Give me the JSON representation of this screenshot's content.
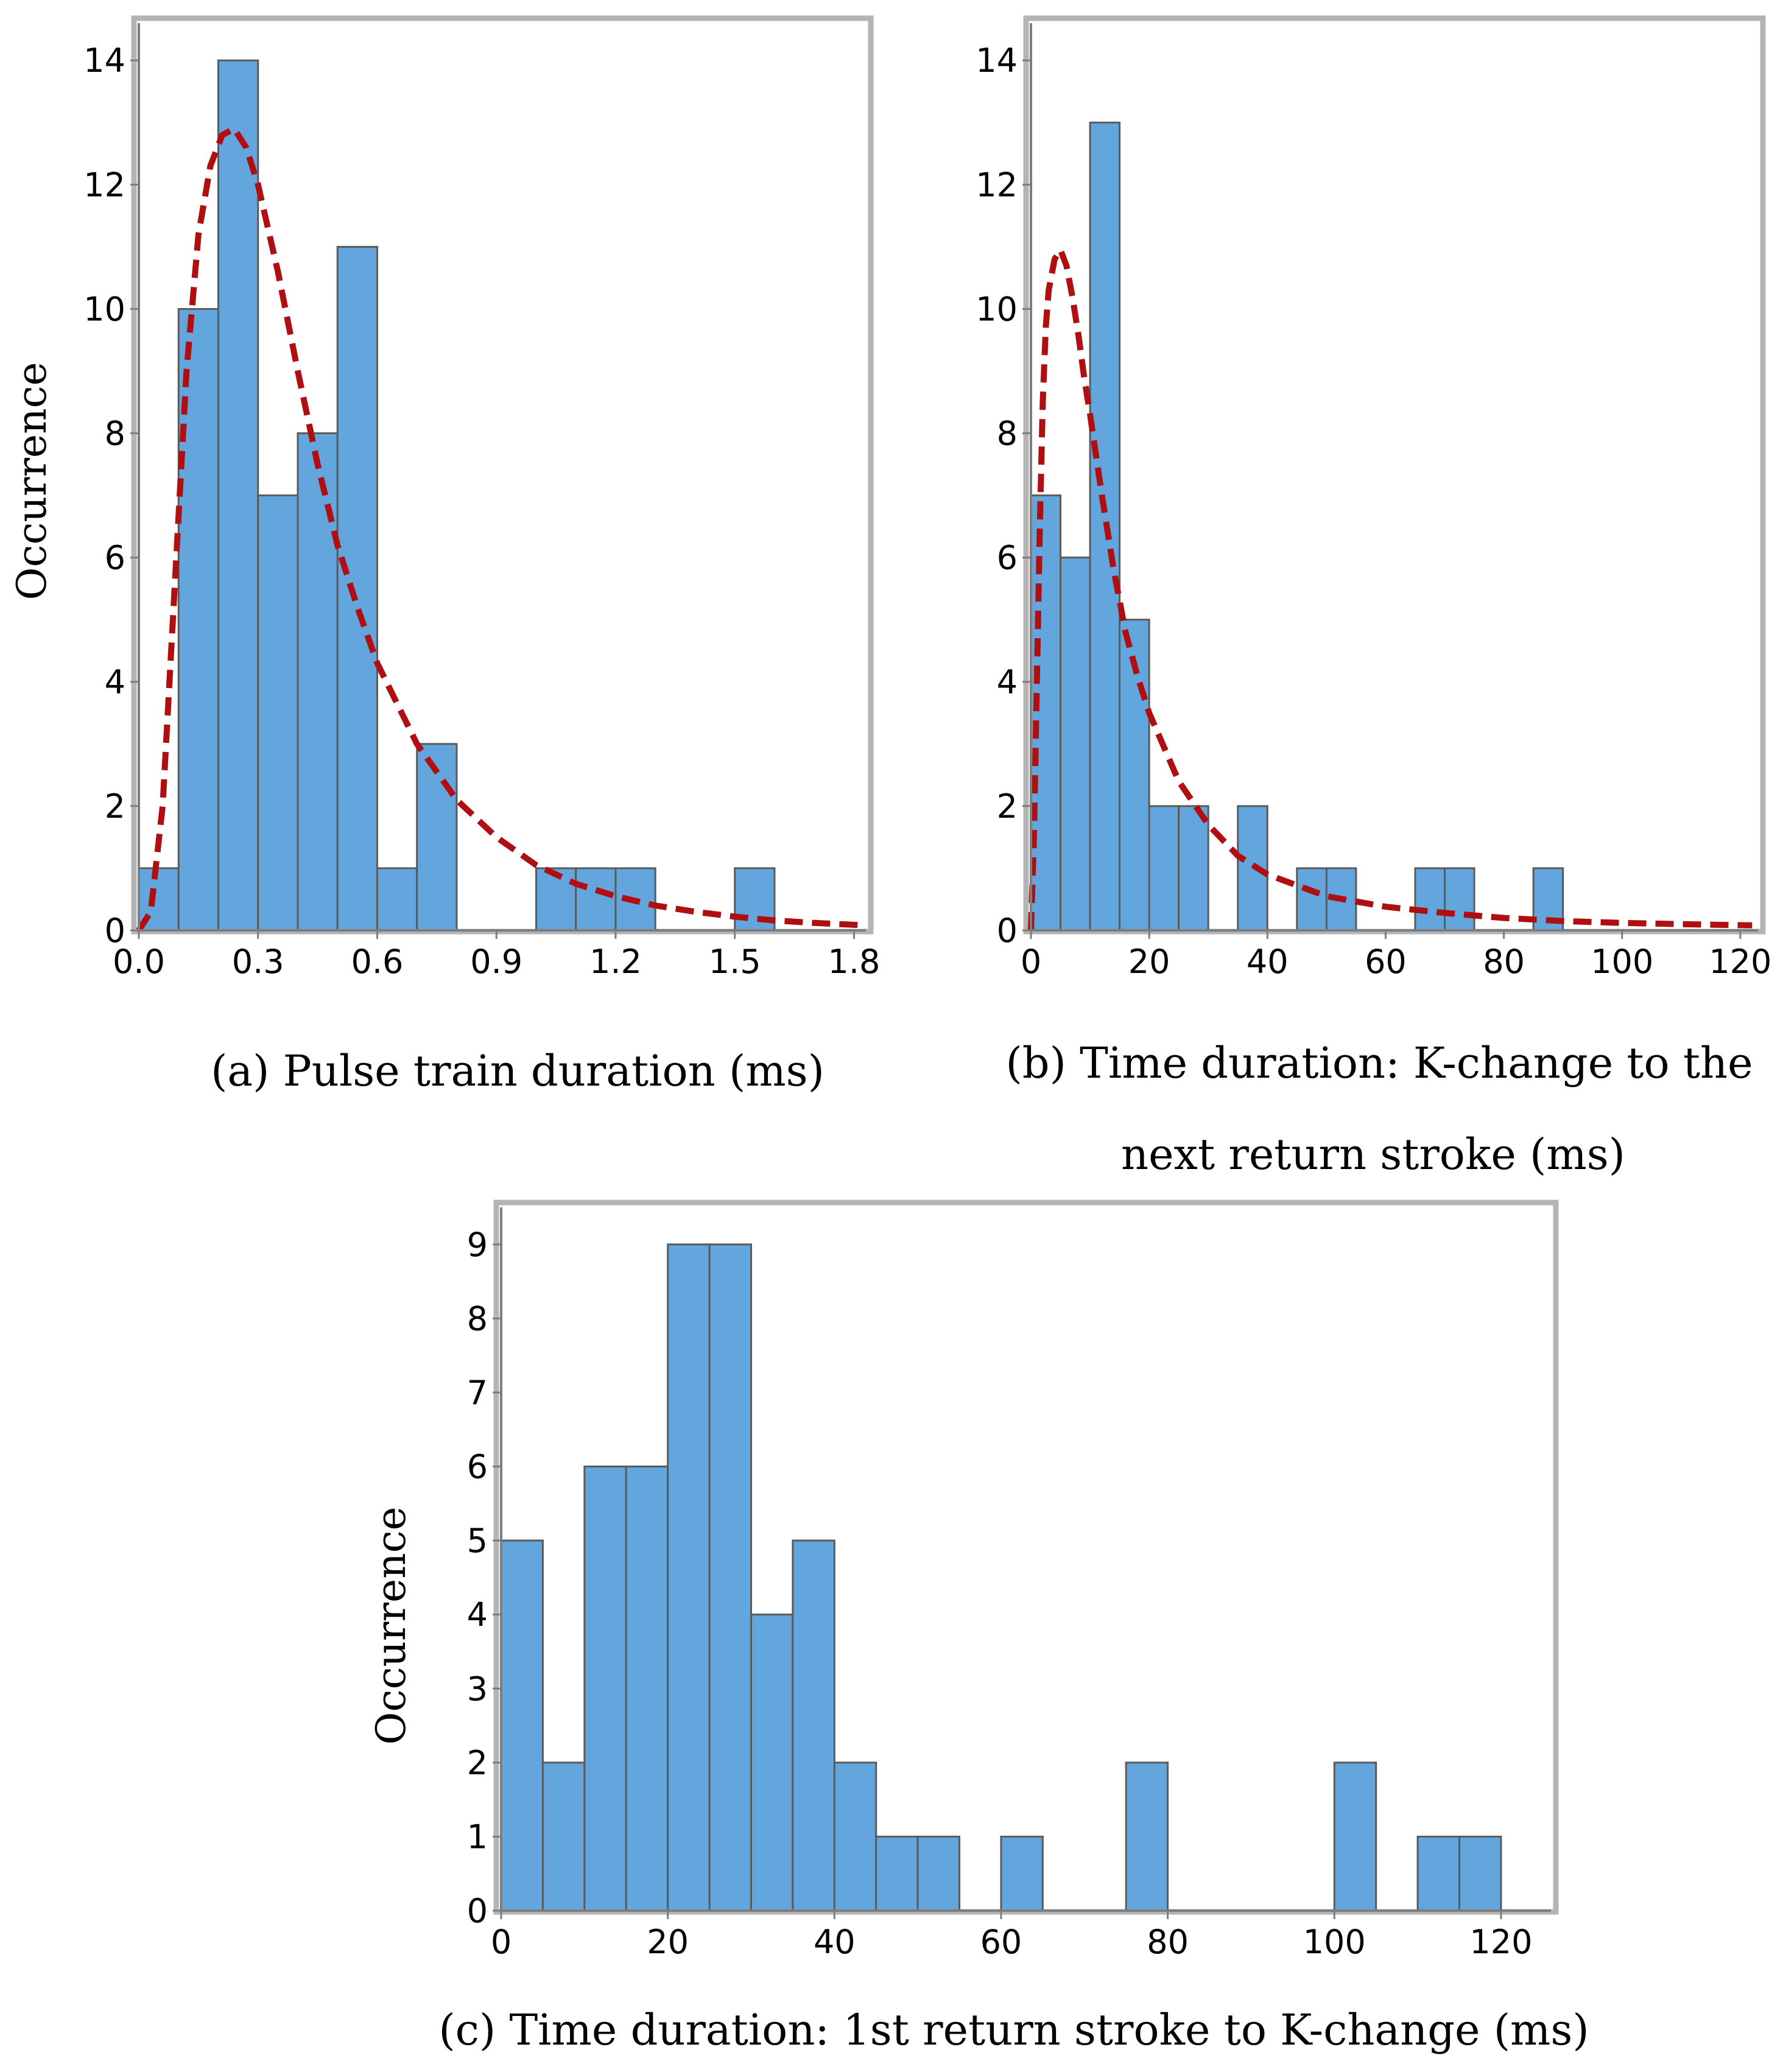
{
  "colors": {
    "bar_fill": "#63a6dd",
    "bar_edge": "#5a5a5a",
    "fit_line": "#b00f12",
    "frame": "#b4b4b4"
  },
  "chart_data": [
    {
      "id": "a",
      "type": "bar",
      "caption": "(a) Pulse train duration (ms)",
      "ylabel": "Occurrence",
      "xlim": [
        0,
        1.83
      ],
      "ylim": [
        0,
        14.6
      ],
      "xticks": [
        0.0,
        0.3,
        0.6,
        0.9,
        1.2,
        1.5,
        1.8
      ],
      "xtick_labels": [
        "0.0",
        "0.3",
        "0.6",
        "0.9",
        "1.2",
        "1.5",
        "1.8"
      ],
      "yticks": [
        0,
        2,
        4,
        6,
        8,
        10,
        12,
        14
      ],
      "ytick_labels": [
        "0",
        "2",
        "4",
        "6",
        "8",
        "10",
        "12",
        "14"
      ],
      "bin_width": 0.1,
      "bins": [
        {
          "start": 0.0,
          "count": 1
        },
        {
          "start": 0.1,
          "count": 10
        },
        {
          "start": 0.2,
          "count": 14
        },
        {
          "start": 0.3,
          "count": 7
        },
        {
          "start": 0.4,
          "count": 8
        },
        {
          "start": 0.5,
          "count": 11
        },
        {
          "start": 0.6,
          "count": 1
        },
        {
          "start": 0.7,
          "count": 3
        },
        {
          "start": 0.8,
          "count": 0
        },
        {
          "start": 0.9,
          "count": 0
        },
        {
          "start": 1.0,
          "count": 1
        },
        {
          "start": 1.1,
          "count": 1
        },
        {
          "start": 1.2,
          "count": 1
        },
        {
          "start": 1.3,
          "count": 0
        },
        {
          "start": 1.4,
          "count": 0
        },
        {
          "start": 1.5,
          "count": 1
        }
      ],
      "fit_curve": {
        "style": "dashed",
        "x": [
          0.0,
          0.03,
          0.06,
          0.09,
          0.12,
          0.15,
          0.18,
          0.21,
          0.24,
          0.27,
          0.3,
          0.35,
          0.4,
          0.45,
          0.5,
          0.55,
          0.6,
          0.7,
          0.8,
          0.9,
          1.0,
          1.1,
          1.2,
          1.3,
          1.4,
          1.5,
          1.6,
          1.7,
          1.83
        ],
        "y": [
          0,
          0.3,
          2.0,
          5.5,
          9.0,
          11.2,
          12.3,
          12.8,
          12.9,
          12.6,
          12.0,
          10.6,
          9.0,
          7.5,
          6.2,
          5.2,
          4.3,
          3.0,
          2.1,
          1.5,
          1.05,
          0.75,
          0.55,
          0.4,
          0.3,
          0.22,
          0.16,
          0.12,
          0.08
        ]
      }
    },
    {
      "id": "b",
      "type": "bar",
      "caption": [
        "(b) Time duration: K-change to the",
        "next return stroke (ms)"
      ],
      "ylabel": "",
      "xlim": [
        0,
        123
      ],
      "ylim": [
        0,
        14.6
      ],
      "xticks": [
        0,
        20,
        40,
        60,
        80,
        100,
        120
      ],
      "xtick_labels": [
        "0",
        "20",
        "40",
        "60",
        "80",
        "100",
        "120"
      ],
      "yticks": [
        0,
        2,
        4,
        6,
        8,
        10,
        12,
        14
      ],
      "ytick_labels": [
        "0",
        "2",
        "4",
        "6",
        "8",
        "10",
        "12",
        "14"
      ],
      "bin_width": 5,
      "bins": [
        {
          "start": 0,
          "count": 7
        },
        {
          "start": 5,
          "count": 6
        },
        {
          "start": 10,
          "count": 13
        },
        {
          "start": 15,
          "count": 5
        },
        {
          "start": 20,
          "count": 2
        },
        {
          "start": 25,
          "count": 2
        },
        {
          "start": 30,
          "count": 0
        },
        {
          "start": 35,
          "count": 2
        },
        {
          "start": 40,
          "count": 0
        },
        {
          "start": 45,
          "count": 1
        },
        {
          "start": 50,
          "count": 1
        },
        {
          "start": 55,
          "count": 0
        },
        {
          "start": 60,
          "count": 0
        },
        {
          "start": 65,
          "count": 1
        },
        {
          "start": 70,
          "count": 1
        },
        {
          "start": 75,
          "count": 0
        },
        {
          "start": 80,
          "count": 0
        },
        {
          "start": 85,
          "count": 1
        }
      ],
      "fit_curve": {
        "style": "dashed",
        "x": [
          0,
          0.5,
          1,
          1.5,
          2,
          2.5,
          3,
          4,
          5,
          6,
          7,
          8,
          9,
          10,
          12,
          14,
          16,
          18,
          20,
          25,
          30,
          35,
          40,
          50,
          60,
          70,
          80,
          90,
          100,
          110,
          122
        ],
        "y": [
          0,
          1.5,
          4.0,
          6.5,
          8.5,
          9.7,
          10.3,
          10.8,
          10.95,
          10.7,
          10.2,
          9.6,
          8.9,
          8.3,
          7.0,
          5.8,
          4.8,
          4.1,
          3.5,
          2.4,
          1.7,
          1.2,
          0.9,
          0.55,
          0.38,
          0.28,
          0.2,
          0.15,
          0.12,
          0.1,
          0.08
        ]
      }
    },
    {
      "id": "c",
      "type": "bar",
      "caption": "(c) Time duration: 1st return stroke to K-change (ms)",
      "ylabel": "Occurrence",
      "xlim": [
        0,
        126
      ],
      "ylim": [
        0,
        9.5
      ],
      "xticks": [
        0,
        20,
        40,
        60,
        80,
        100,
        120
      ],
      "xtick_labels": [
        "0",
        "20",
        "40",
        "60",
        "80",
        "100",
        "120"
      ],
      "yticks": [
        0,
        1,
        2,
        3,
        4,
        5,
        6,
        7,
        8,
        9
      ],
      "ytick_labels": [
        "0",
        "1",
        "2",
        "3",
        "4",
        "5",
        "6",
        "7",
        "8",
        "9"
      ],
      "bin_width": 5,
      "bins": [
        {
          "start": 0,
          "count": 5
        },
        {
          "start": 5,
          "count": 2
        },
        {
          "start": 10,
          "count": 6
        },
        {
          "start": 15,
          "count": 6
        },
        {
          "start": 20,
          "count": 9
        },
        {
          "start": 25,
          "count": 9
        },
        {
          "start": 30,
          "count": 4
        },
        {
          "start": 35,
          "count": 5
        },
        {
          "start": 40,
          "count": 2
        },
        {
          "start": 45,
          "count": 1
        },
        {
          "start": 50,
          "count": 1
        },
        {
          "start": 55,
          "count": 0
        },
        {
          "start": 60,
          "count": 1
        },
        {
          "start": 65,
          "count": 0
        },
        {
          "start": 70,
          "count": 0
        },
        {
          "start": 75,
          "count": 2
        },
        {
          "start": 80,
          "count": 0
        },
        {
          "start": 85,
          "count": 0
        },
        {
          "start": 90,
          "count": 0
        },
        {
          "start": 95,
          "count": 0
        },
        {
          "start": 100,
          "count": 2
        },
        {
          "start": 105,
          "count": 0
        },
        {
          "start": 110,
          "count": 1
        },
        {
          "start": 115,
          "count": 1
        }
      ]
    }
  ]
}
